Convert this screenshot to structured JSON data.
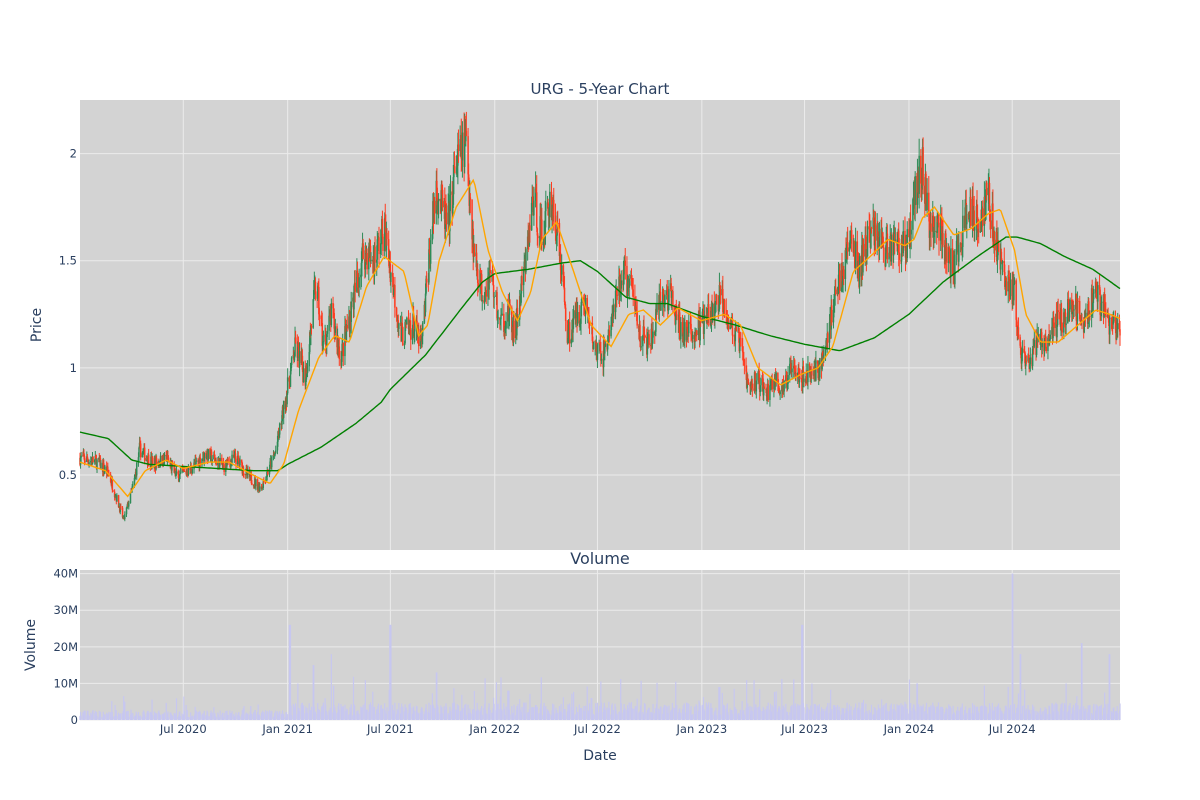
{
  "chart_data": [
    {
      "type": "candlestick",
      "title": "URG - 5-Year Chart",
      "ylabel": "Price",
      "xlabel": "",
      "ylim": [
        0.15,
        2.25
      ],
      "xlim": [
        "2020-01-01",
        "2025-01-07"
      ],
      "y_ticks": [
        0.5,
        1,
        1.5,
        2
      ],
      "y_tick_labels": [
        "0.5",
        "1",
        "1.5",
        "2"
      ],
      "grid": true,
      "legend": "none",
      "colors": {
        "background": "#d3d3d3",
        "grid": "#ebebeb",
        "up": "#2e8b57",
        "down": "#ff3b1f",
        "ma_short": "#ffa500",
        "ma_long": "#008000"
      },
      "price_anchors": [
        [
          "2020-01-01",
          0.58
        ],
        [
          "2020-02-01",
          0.56
        ],
        [
          "2020-02-20",
          0.51
        ],
        [
          "2020-03-18",
          0.29
        ],
        [
          "2020-04-05",
          0.46
        ],
        [
          "2020-04-15",
          0.62
        ],
        [
          "2020-05-10",
          0.55
        ],
        [
          "2020-06-01",
          0.58
        ],
        [
          "2020-06-20",
          0.49
        ],
        [
          "2020-07-15",
          0.53
        ],
        [
          "2020-08-10",
          0.6
        ],
        [
          "2020-09-10",
          0.54
        ],
        [
          "2020-10-01",
          0.58
        ],
        [
          "2020-10-25",
          0.49
        ],
        [
          "2020-11-15",
          0.44
        ],
        [
          "2020-12-10",
          0.6
        ],
        [
          "2020-12-28",
          0.85
        ],
        [
          "2021-01-15",
          1.1
        ],
        [
          "2021-02-01",
          0.95
        ],
        [
          "2021-02-20",
          1.4
        ],
        [
          "2021-03-05",
          1.1
        ],
        [
          "2021-03-20",
          1.25
        ],
        [
          "2021-04-05",
          1.05
        ],
        [
          "2021-04-25",
          1.3
        ],
        [
          "2021-05-15",
          1.55
        ],
        [
          "2021-06-01",
          1.5
        ],
        [
          "2021-06-20",
          1.65
        ],
        [
          "2021-07-05",
          1.4
        ],
        [
          "2021-07-20",
          1.15
        ],
        [
          "2021-08-10",
          1.2
        ],
        [
          "2021-08-25",
          1.1
        ],
        [
          "2021-09-05",
          1.45
        ],
        [
          "2021-09-20",
          1.85
        ],
        [
          "2021-10-10",
          1.65
        ],
        [
          "2021-10-25",
          1.95
        ],
        [
          "2021-11-12",
          2.05
        ],
        [
          "2021-11-25",
          1.55
        ],
        [
          "2021-12-10",
          1.35
        ],
        [
          "2021-12-25",
          1.45
        ],
        [
          "2022-01-10",
          1.2
        ],
        [
          "2022-01-25",
          1.25
        ],
        [
          "2022-02-05",
          1.15
        ],
        [
          "2022-02-25",
          1.5
        ],
        [
          "2022-03-10",
          1.8
        ],
        [
          "2022-03-25",
          1.6
        ],
        [
          "2022-04-10",
          1.8
        ],
        [
          "2022-04-25",
          1.55
        ],
        [
          "2022-05-10",
          1.15
        ],
        [
          "2022-05-25",
          1.25
        ],
        [
          "2022-06-10",
          1.3
        ],
        [
          "2022-06-25",
          1.1
        ],
        [
          "2022-07-10",
          1.05
        ],
        [
          "2022-07-25",
          1.2
        ],
        [
          "2022-08-15",
          1.45
        ],
        [
          "2022-09-01",
          1.35
        ],
        [
          "2022-09-15",
          1.15
        ],
        [
          "2022-10-01",
          1.1
        ],
        [
          "2022-10-20",
          1.3
        ],
        [
          "2022-11-05",
          1.35
        ],
        [
          "2022-11-20",
          1.2
        ],
        [
          "2022-12-10",
          1.15
        ],
        [
          "2022-12-31",
          1.2
        ],
        [
          "2023-01-20",
          1.25
        ],
        [
          "2023-02-05",
          1.35
        ],
        [
          "2023-02-20",
          1.2
        ],
        [
          "2023-03-10",
          1.1
        ],
        [
          "2023-03-25",
          0.9
        ],
        [
          "2023-04-10",
          0.95
        ],
        [
          "2023-04-25",
          0.88
        ],
        [
          "2023-05-10",
          0.95
        ],
        [
          "2023-05-25",
          0.88
        ],
        [
          "2023-06-10",
          1.05
        ],
        [
          "2023-06-25",
          0.95
        ],
        [
          "2023-07-10",
          0.98
        ],
        [
          "2023-07-25",
          1.0
        ],
        [
          "2023-08-05",
          1.05
        ],
        [
          "2023-08-20",
          1.3
        ],
        [
          "2023-09-05",
          1.45
        ],
        [
          "2023-09-20",
          1.6
        ],
        [
          "2023-10-05",
          1.45
        ],
        [
          "2023-10-20",
          1.6
        ],
        [
          "2023-11-05",
          1.65
        ],
        [
          "2023-11-20",
          1.55
        ],
        [
          "2023-12-10",
          1.6
        ],
        [
          "2023-12-28",
          1.55
        ],
        [
          "2024-01-10",
          1.8
        ],
        [
          "2024-01-25",
          1.95
        ],
        [
          "2024-02-05",
          1.65
        ],
        [
          "2024-02-20",
          1.7
        ],
        [
          "2024-03-05",
          1.55
        ],
        [
          "2024-03-20",
          1.45
        ],
        [
          "2024-04-05",
          1.65
        ],
        [
          "2024-04-20",
          1.75
        ],
        [
          "2024-05-05",
          1.7
        ],
        [
          "2024-05-20",
          1.8
        ],
        [
          "2024-06-05",
          1.55
        ],
        [
          "2024-06-20",
          1.4
        ],
        [
          "2024-07-05",
          1.35
        ],
        [
          "2024-07-15",
          1.05
        ],
        [
          "2024-07-30",
          1.0
        ],
        [
          "2024-08-15",
          1.15
        ],
        [
          "2024-09-01",
          1.1
        ],
        [
          "2024-09-15",
          1.2
        ],
        [
          "2024-10-05",
          1.25
        ],
        [
          "2024-10-20",
          1.3
        ],
        [
          "2024-11-05",
          1.2
        ],
        [
          "2024-11-20",
          1.35
        ],
        [
          "2024-12-05",
          1.3
        ],
        [
          "2024-12-20",
          1.2
        ],
        [
          "2025-01-07",
          1.15
        ]
      ],
      "ma_short_anchors": [
        [
          "2020-01-01",
          0.56
        ],
        [
          "2020-02-15",
          0.52
        ],
        [
          "2020-03-25",
          0.4
        ],
        [
          "2020-04-25",
          0.52
        ],
        [
          "2020-06-01",
          0.57
        ],
        [
          "2020-07-01",
          0.53
        ],
        [
          "2020-08-15",
          0.56
        ],
        [
          "2020-09-20",
          0.56
        ],
        [
          "2020-11-01",
          0.5
        ],
        [
          "2020-12-01",
          0.46
        ],
        [
          "2020-12-25",
          0.55
        ],
        [
          "2021-01-20",
          0.8
        ],
        [
          "2021-02-25",
          1.05
        ],
        [
          "2021-03-25",
          1.15
        ],
        [
          "2021-04-20",
          1.12
        ],
        [
          "2021-05-20",
          1.38
        ],
        [
          "2021-06-20",
          1.52
        ],
        [
          "2021-07-25",
          1.45
        ],
        [
          "2021-08-20",
          1.15
        ],
        [
          "2021-09-05",
          1.2
        ],
        [
          "2021-09-25",
          1.5
        ],
        [
          "2021-10-25",
          1.75
        ],
        [
          "2021-11-25",
          1.88
        ],
        [
          "2021-12-20",
          1.55
        ],
        [
          "2022-01-15",
          1.35
        ],
        [
          "2022-02-10",
          1.22
        ],
        [
          "2022-03-05",
          1.35
        ],
        [
          "2022-03-25",
          1.6
        ],
        [
          "2022-04-20",
          1.68
        ],
        [
          "2022-05-20",
          1.45
        ],
        [
          "2022-06-20",
          1.2
        ],
        [
          "2022-07-25",
          1.1
        ],
        [
          "2022-08-25",
          1.25
        ],
        [
          "2022-09-20",
          1.27
        ],
        [
          "2022-10-20",
          1.2
        ],
        [
          "2022-11-20",
          1.28
        ],
        [
          "2022-12-31",
          1.22
        ],
        [
          "2023-02-10",
          1.25
        ],
        [
          "2023-03-10",
          1.2
        ],
        [
          "2023-04-10",
          1.0
        ],
        [
          "2023-05-20",
          0.92
        ],
        [
          "2023-06-25",
          0.97
        ],
        [
          "2023-07-25",
          1.0
        ],
        [
          "2023-08-20",
          1.1
        ],
        [
          "2023-09-25",
          1.45
        ],
        [
          "2023-10-25",
          1.52
        ],
        [
          "2023-11-25",
          1.6
        ],
        [
          "2023-12-25",
          1.57
        ],
        [
          "2024-01-10",
          1.6
        ],
        [
          "2024-01-25",
          1.7
        ],
        [
          "2024-02-15",
          1.75
        ],
        [
          "2024-03-20",
          1.62
        ],
        [
          "2024-04-20",
          1.65
        ],
        [
          "2024-05-20",
          1.72
        ],
        [
          "2024-06-10",
          1.74
        ],
        [
          "2024-07-05",
          1.55
        ],
        [
          "2024-07-25",
          1.25
        ],
        [
          "2024-08-20",
          1.12
        ],
        [
          "2024-09-20",
          1.12
        ],
        [
          "2024-10-25",
          1.2
        ],
        [
          "2024-11-25",
          1.27
        ],
        [
          "2024-12-20",
          1.25
        ],
        [
          "2025-01-07",
          1.23
        ]
      ],
      "ma_long_anchors": [
        [
          "2020-01-01",
          0.7
        ],
        [
          "2020-02-20",
          0.67
        ],
        [
          "2020-04-01",
          0.57
        ],
        [
          "2020-05-01",
          0.55
        ],
        [
          "2020-07-01",
          0.54
        ],
        [
          "2020-09-01",
          0.53
        ],
        [
          "2020-11-01",
          0.52
        ],
        [
          "2020-12-15",
          0.52
        ],
        [
          "2021-01-01",
          0.55
        ],
        [
          "2021-03-01",
          0.63
        ],
        [
          "2021-05-01",
          0.74
        ],
        [
          "2021-06-15",
          0.84
        ],
        [
          "2021-07-01",
          0.9
        ],
        [
          "2021-09-01",
          1.06
        ],
        [
          "2021-11-01",
          1.27
        ],
        [
          "2021-12-10",
          1.4
        ],
        [
          "2022-01-01",
          1.44
        ],
        [
          "2022-03-01",
          1.46
        ],
        [
          "2022-05-01",
          1.49
        ],
        [
          "2022-06-01",
          1.5
        ],
        [
          "2022-07-01",
          1.45
        ],
        [
          "2022-08-20",
          1.33
        ],
        [
          "2022-10-01",
          1.3
        ],
        [
          "2022-11-01",
          1.3
        ],
        [
          "2023-01-01",
          1.24
        ],
        [
          "2023-03-01",
          1.2
        ],
        [
          "2023-05-01",
          1.15
        ],
        [
          "2023-07-01",
          1.11
        ],
        [
          "2023-09-01",
          1.08
        ],
        [
          "2023-11-01",
          1.14
        ],
        [
          "2024-01-01",
          1.25
        ],
        [
          "2024-03-01",
          1.4
        ],
        [
          "2024-05-01",
          1.52
        ],
        [
          "2024-06-20",
          1.61
        ],
        [
          "2024-07-10",
          1.61
        ],
        [
          "2024-08-20",
          1.58
        ],
        [
          "2024-10-01",
          1.52
        ],
        [
          "2024-11-20",
          1.46
        ],
        [
          "2025-01-07",
          1.37
        ]
      ]
    },
    {
      "type": "bar",
      "title": "Volume",
      "xlabel": "Date",
      "ylabel": "Volume",
      "ylim": [
        0,
        41000000
      ],
      "y_ticks": [
        0,
        10000000,
        20000000,
        30000000,
        40000000
      ],
      "y_tick_labels": [
        "0",
        "10M",
        "20M",
        "30M",
        "40M"
      ],
      "x_ticks": [
        "2020-07-01",
        "2021-01-01",
        "2021-07-01",
        "2022-01-01",
        "2022-07-01",
        "2023-01-01",
        "2023-07-01",
        "2024-01-01",
        "2024-07-01"
      ],
      "x_tick_labels": [
        "Jul 2020",
        "Jan 2021",
        "Jul 2021",
        "Jan 2022",
        "Jul 2022",
        "Jan 2023",
        "Jul 2023",
        "Jan 2024",
        "Jul 2024"
      ],
      "grid": true,
      "colors": {
        "background": "#d3d3d3",
        "bars": "#c7c7f0"
      },
      "volume_spikes": [
        [
          "2020-03-20",
          5000000
        ],
        [
          "2021-01-05",
          26000000
        ],
        [
          "2021-02-15",
          15000000
        ],
        [
          "2021-03-20",
          18000000
        ],
        [
          "2021-07-01",
          26000000
        ],
        [
          "2021-09-20",
          13000000
        ],
        [
          "2022-01-25",
          8000000
        ],
        [
          "2022-06-20",
          6000000
        ],
        [
          "2023-02-01",
          9000000
        ],
        [
          "2023-06-27",
          26000000
        ],
        [
          "2024-01-15",
          10000000
        ],
        [
          "2024-07-01",
          40000000
        ],
        [
          "2024-07-15",
          18000000
        ],
        [
          "2024-10-05",
          10000000
        ],
        [
          "2024-11-01",
          21000000
        ],
        [
          "2024-12-20",
          18000000
        ]
      ]
    }
  ]
}
